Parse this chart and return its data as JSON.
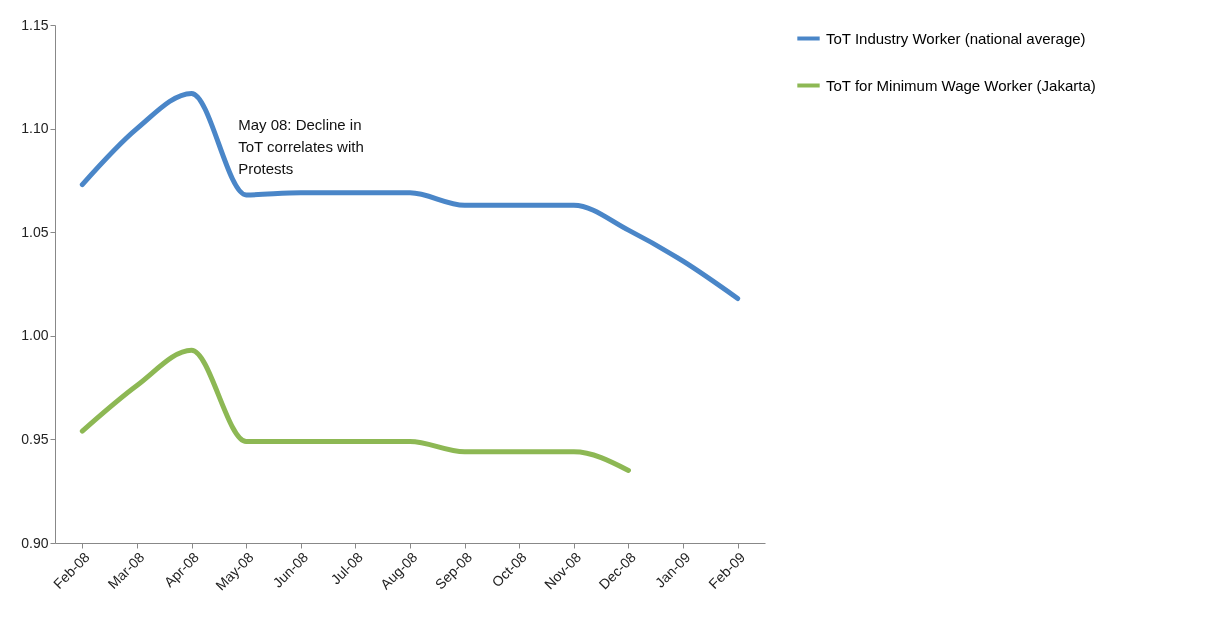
{
  "chart_data": {
    "type": "line",
    "categories": [
      "Feb-08",
      "Mar-08",
      "Apr-08",
      "May-08",
      "Jun-08",
      "Jul-08",
      "Aug-08",
      "Sep-08",
      "Oct-08",
      "Nov-08",
      "Dec-08",
      "Jan-09",
      "Feb-09"
    ],
    "series": [
      {
        "name": "ToT Industry Worker (national average)",
        "color": "#4a86c8",
        "values": [
          1.073,
          1.1,
          1.117,
          1.068,
          1.069,
          1.069,
          1.069,
          1.063,
          1.063,
          1.063,
          1.051,
          1.036,
          1.018
        ]
      },
      {
        "name": "ToT  for Minimum Wage Worker (Jakarta)",
        "color": "#8db854",
        "values": [
          0.954,
          0.976,
          0.993,
          0.949,
          0.949,
          0.949,
          0.949,
          0.944,
          0.944,
          0.944,
          0.935,
          null,
          null
        ]
      }
    ],
    "ylim": [
      0.9,
      1.15
    ],
    "yticks": [
      {
        "value": 0.9,
        "label": "0.90"
      },
      0.95,
      {
        "value": 1.0,
        "label": "1.00"
      },
      1.05,
      {
        "value": 1.1,
        "label": "1.10"
      },
      1.15
    ],
    "annotations": [
      {
        "text": "May 08: Decline in ToT correlates with Protests",
        "x": "May-08",
        "y": 1.068
      }
    ],
    "grid": false,
    "legend": "right",
    "line_style": "solid"
  }
}
